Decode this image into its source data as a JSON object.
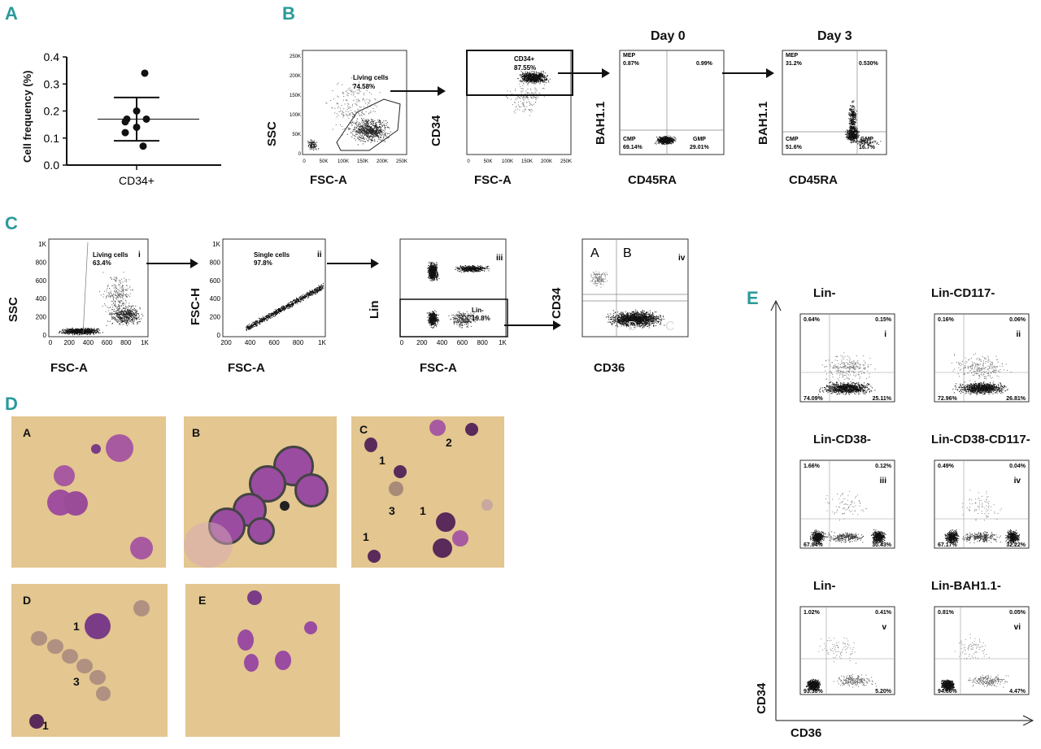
{
  "panels": {
    "A": "A",
    "B": "B",
    "C": "C",
    "D": "D",
    "E": "E"
  },
  "chart_data": {
    "type": "scatter",
    "title": "",
    "xlabel": "CD34+",
    "ylabel": "Cell frequency (%)",
    "ylim": [
      0,
      0.4
    ],
    "yticks": [
      "0.0",
      "0.1",
      "0.2",
      "0.3",
      "0.4"
    ],
    "category": "CD34+",
    "points": [
      0.34,
      0.2,
      0.17,
      0.17,
      0.16,
      0.14,
      0.12,
      0.07
    ],
    "mean": 0.17,
    "sd_upper": 0.25,
    "sd_lower": 0.09
  },
  "panelB": {
    "plot1": {
      "ylabel": "SSC",
      "xlabel": "FSC-A",
      "gate": "Living cells",
      "gate_pct": "74.58%",
      "xticks": [
        "0",
        "50K",
        "100K",
        "150K",
        "200K",
        "250K"
      ],
      "yticks": [
        "0",
        "50K",
        "100K",
        "150K",
        "200K",
        "250K"
      ]
    },
    "plot2": {
      "ylabel": "CD34",
      "xlabel": "FSC-A",
      "gate": "CD34+",
      "gate_pct": "87.55%",
      "xticks": [
        "0",
        "50K",
        "100K",
        "150K",
        "200K",
        "250K"
      ],
      "yticks": [
        "10^3",
        "10^4",
        "10^5"
      ]
    },
    "plot3": {
      "title": "Day 0",
      "ylabel": "BAH1.1",
      "xlabel": "CD45RA",
      "q_tl": "MEP",
      "q_tl_pct": "0.87%",
      "q_tr_pct": "0.99%",
      "q_bl": "CMP",
      "q_bl_pct": "69.14%",
      "q_br": "GMP",
      "q_br_pct": "29.01%"
    },
    "plot4": {
      "title": "Day 3",
      "ylabel": "BAH1.1",
      "xlabel": "CD45RA",
      "q_tl": "MEP",
      "q_tl_pct": "31.2%",
      "q_tr_pct": "0.530%",
      "q_bl": "CMP",
      "q_bl_pct": "51.6%",
      "q_br": "GMP",
      "q_br_pct": "16.7%"
    }
  },
  "panelC": {
    "plot1": {
      "ylabel": "SSC",
      "xlabel": "FSC-A",
      "gate": "Living cells",
      "gate_pct": "63.4%",
      "roman": "i",
      "xticks": [
        "0",
        "200",
        "400",
        "600",
        "800",
        "1K"
      ],
      "yticks": [
        "0",
        "200",
        "400",
        "600",
        "800",
        "1K"
      ]
    },
    "plot2": {
      "ylabel": "FSC-H",
      "xlabel": "FSC-A",
      "gate": "Single cells",
      "gate_pct": "97.8%",
      "roman": "ii",
      "xticks": [
        "200",
        "400",
        "600",
        "800",
        "1K"
      ],
      "yticks": [
        "0",
        "200",
        "400",
        "600",
        "800",
        "1K"
      ]
    },
    "plot3": {
      "ylabel": "Lin",
      "xlabel": "FSC-A",
      "gate": "Lin-",
      "gate_pct": "19.8%",
      "roman": "iii",
      "xticks": [
        "0",
        "200",
        "400",
        "600",
        "800",
        "1K"
      ]
    },
    "plot4": {
      "ylabel": "CD34",
      "xlabel": "CD36",
      "roman": "iv",
      "regions": [
        "A",
        "B",
        "E",
        "D",
        "C"
      ]
    }
  },
  "panelD": {
    "photos": [
      {
        "label": "A",
        "numbers": []
      },
      {
        "label": "B",
        "numbers": []
      },
      {
        "label": "C",
        "numbers": [
          "1",
          "2",
          "3",
          "1",
          "1"
        ]
      },
      {
        "label": "D",
        "numbers": [
          "1",
          "3",
          "1"
        ]
      },
      {
        "label": "E",
        "numbers": []
      }
    ]
  },
  "panelE": {
    "ylabel": "CD34",
    "xlabel": "CD36",
    "plots": [
      {
        "title": "Lin-",
        "roman": "i",
        "tl": "0.64%",
        "tr": "0.15%",
        "bl": "74.09%",
        "br": "25.11%"
      },
      {
        "title": "Lin-CD117-",
        "roman": "ii",
        "tl": "0.16%",
        "tr": "0.06%",
        "bl": "72.96%",
        "br": "26.81%"
      },
      {
        "title": "Lin-CD38-",
        "roman": "iii",
        "tl": "1.66%",
        "tr": "0.12%",
        "bl": "67.84%",
        "br": "30.43%"
      },
      {
        "title": "Lin-CD38-CD117-",
        "roman": "iv",
        "tl": "0.49%",
        "tr": "0.04%",
        "bl": "67.17%",
        "br": "32.22%"
      },
      {
        "title": "Lin-",
        "roman": "v",
        "tl": "1.02%",
        "tr": "0.41%",
        "bl": "93.38%",
        "br": "5.20%"
      },
      {
        "title": "Lin-BAH1.1-",
        "roman": "vi",
        "tl": "0.81%",
        "tr": "0.05%",
        "bl": "94.66%",
        "br": "4.47%"
      }
    ]
  }
}
